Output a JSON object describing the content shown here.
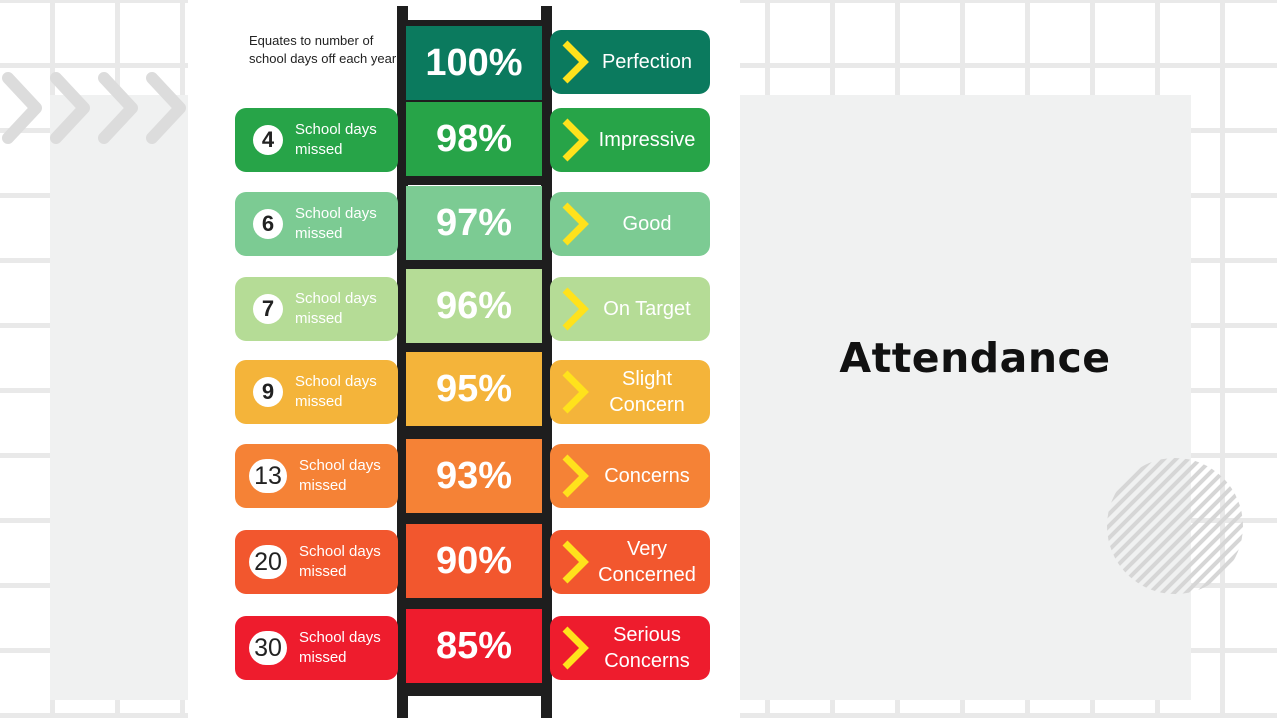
{
  "slide": {
    "title": "Attendance"
  },
  "infographic": {
    "note": "Equates to number of school days off each year",
    "missed_label": "School days missed",
    "levels": [
      {
        "percent": "100%",
        "days_missed": "",
        "rating": "Perfection",
        "color": "#0b7a5e"
      },
      {
        "percent": "98%",
        "days_missed": "4",
        "rating": "Impressive",
        "color": "#27a448"
      },
      {
        "percent": "97%",
        "days_missed": "6",
        "rating": "Good",
        "color": "#7ccb93"
      },
      {
        "percent": "96%",
        "days_missed": "7",
        "rating": "On Target",
        "color": "#b5dc96"
      },
      {
        "percent": "95%",
        "days_missed": "9",
        "rating": "Slight Concern",
        "color": "#f4b43a"
      },
      {
        "percent": "93%",
        "days_missed": "13",
        "rating": "Concerns",
        "color": "#f58236"
      },
      {
        "percent": "90%",
        "days_missed": "20",
        "rating": "Very Concerned",
        "color": "#f2572e"
      },
      {
        "percent": "85%",
        "days_missed": "30",
        "rating": "Serious Concerns",
        "color": "#ee1c2d"
      }
    ],
    "chevron_color": "#ffe21c",
    "ladder_color": "#1e1e1e"
  },
  "decor": {
    "chevron_deco_color": "#dcdcdc",
    "icons": [
      "chevrons-right-decoration",
      "striped-circle-decoration"
    ]
  }
}
